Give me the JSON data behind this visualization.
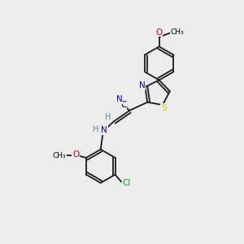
{
  "background_color": "#ececec",
  "atom_colors": {
    "C": "#000000",
    "N": "#0000cc",
    "O": "#cc0000",
    "S": "#cccc00",
    "Cl": "#00aa00",
    "H": "#4a9090"
  },
  "bond_color": "#1a1a1a",
  "lw": 1.3,
  "fontsize": 7.5
}
